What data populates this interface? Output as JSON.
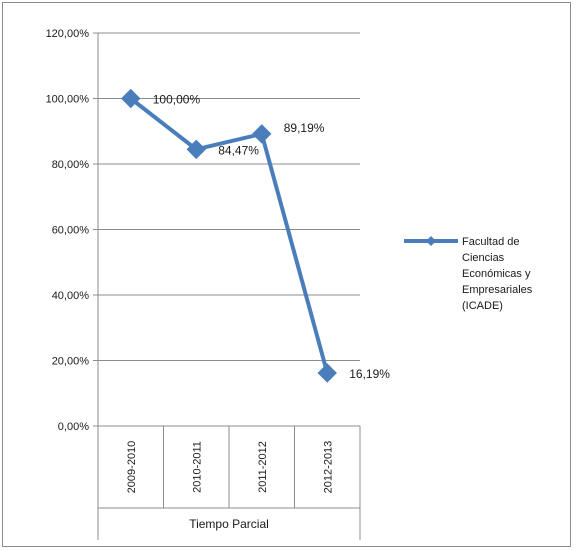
{
  "chart_data": {
    "type": "line",
    "categories": [
      "2009-2010",
      "2010-2011",
      "2011-2012",
      "2012-2013"
    ],
    "category_group_label": "Tiempo Parcial",
    "series": [
      {
        "name": "Facultad de Ciencias Económicas y Empresariales (ICADE)",
        "legend_lines": [
          "Facultad de",
          "Ciencias",
          "Económicas y",
          "Empresariales",
          "(ICADE)"
        ],
        "values": [
          100.0,
          84.47,
          89.19,
          16.19
        ],
        "labels": [
          "100,00%",
          "84,47%",
          "89,19%",
          "16,19%"
        ],
        "color": "#4a7ebb",
        "marker": "diamond"
      }
    ],
    "ylim": [
      0,
      120
    ],
    "yticks": [
      0,
      20,
      40,
      60,
      80,
      100,
      120
    ],
    "ytick_labels": [
      "0,00%",
      "20,00%",
      "40,00%",
      "60,00%",
      "80,00%",
      "100,00%",
      "120,00%"
    ],
    "grid": true,
    "legend_position": "right"
  }
}
